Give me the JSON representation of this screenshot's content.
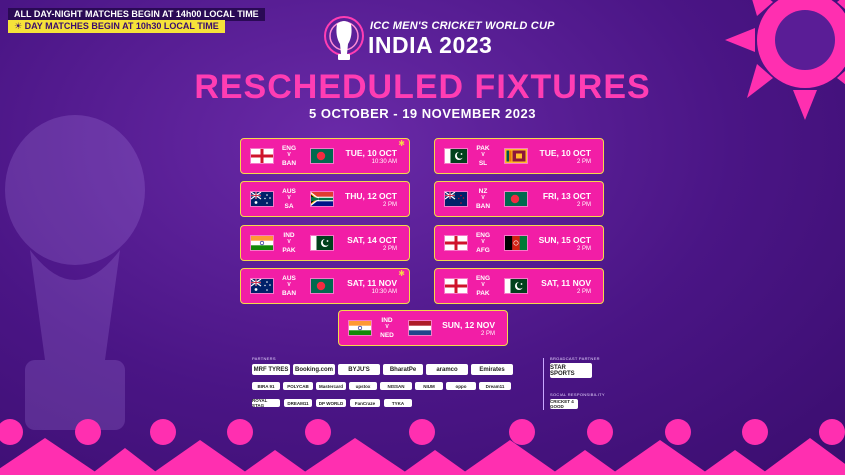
{
  "notices": {
    "night": "ALL DAY-NIGHT MATCHES BEGIN AT 14h00 LOCAL TIME",
    "day": "☀ DAY MATCHES BEGIN AT 10h30 LOCAL TIME"
  },
  "header": {
    "tournament": "ICC MEN'S CRICKET WORLD CUP",
    "host": "INDIA 2023",
    "title": "RESCHEDULED FIXTURES",
    "dates": "5 OCTOBER - 19 NOVEMBER 2023"
  },
  "fixtures": [
    {
      "home": "ENG",
      "away": "BAN",
      "date": "TUE, 10 OCT",
      "time": "10:30 AM",
      "day_match": true
    },
    {
      "home": "PAK",
      "away": "SL",
      "date": "TUE, 10 OCT",
      "time": "2 PM",
      "day_match": false
    },
    {
      "home": "AUS",
      "away": "SA",
      "date": "THU, 12 OCT",
      "time": "2 PM",
      "day_match": false
    },
    {
      "home": "NZ",
      "away": "BAN",
      "date": "FRI, 13 OCT",
      "time": "2 PM",
      "day_match": false
    },
    {
      "home": "IND",
      "away": "PAK",
      "date": "SAT, 14 OCT",
      "time": "2 PM",
      "day_match": false
    },
    {
      "home": "ENG",
      "away": "AFG",
      "date": "SUN, 15 OCT",
      "time": "2 PM",
      "day_match": false
    },
    {
      "home": "AUS",
      "away": "BAN",
      "date": "SAT, 11 NOV",
      "time": "10:30 AM",
      "day_match": true
    },
    {
      "home": "ENG",
      "away": "PAK",
      "date": "SAT, 11 NOV",
      "time": "2 PM",
      "day_match": false
    },
    {
      "home": "IND",
      "away": "NED",
      "date": "SUN, 12 NOV",
      "time": "2 PM",
      "day_match": false
    }
  ],
  "versus": "V",
  "sponsors": {
    "partners_label": "PARTNERS",
    "row1": [
      "MRF TYRES",
      "Booking.com",
      "BYJU'S",
      "BharatPe",
      "aramco",
      "Emirates"
    ],
    "row2": [
      "BIRA 91",
      "POLYCAB",
      "Mastercard",
      "upstox",
      "NISSAN",
      "NIUM",
      "oppo",
      "Dream11"
    ],
    "row3": [
      "ROYAL STAG",
      "DREAM11",
      "DP WORLD",
      "FanCraze",
      "TYKA"
    ],
    "broadcast_label": "BROADCAST PARTNER",
    "broadcast": "STAR SPORTS",
    "social_label": "SOCIAL RESPONSIBILITY",
    "social": "CRICKET 4 GOOD"
  },
  "colors": {
    "background": "#4a1585",
    "card": "#f21ea6",
    "card_border": "#f4d94a",
    "title": "#ff3db3",
    "day_notice": "#f6e23a"
  }
}
